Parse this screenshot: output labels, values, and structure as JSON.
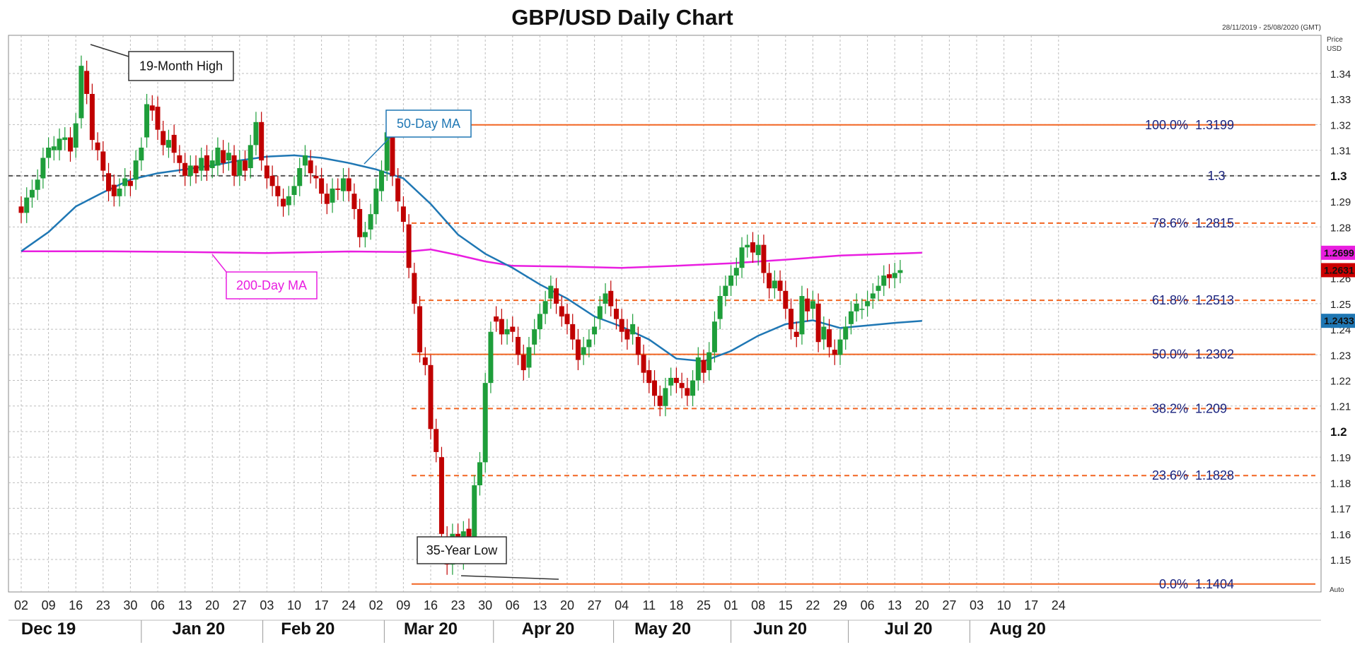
{
  "chart_data": {
    "type": "candlestick",
    "title": "GBP/USD Daily Chart",
    "date_range": "28/11/2019 - 25/08/2020 (GMT)",
    "price_label": "Price",
    "unit_label": "USD",
    "auto_label": "Auto",
    "ylim": [
      1.1375,
      1.3525
    ],
    "y_ticks": [
      {
        "v": 1.34,
        "label": "1.34"
      },
      {
        "v": 1.33,
        "label": "1.33"
      },
      {
        "v": 1.32,
        "label": "1.32"
      },
      {
        "v": 1.31,
        "label": "1.31"
      },
      {
        "v": 1.3,
        "label": "1.3",
        "major": true
      },
      {
        "v": 1.29,
        "label": "1.29"
      },
      {
        "v": 1.28,
        "label": "1.28"
      },
      {
        "v": 1.26,
        "label": "1.26"
      },
      {
        "v": 1.25,
        "label": "1.25"
      },
      {
        "v": 1.24,
        "label": "1.24"
      },
      {
        "v": 1.23,
        "label": "1.23"
      },
      {
        "v": 1.22,
        "label": "1.22"
      },
      {
        "v": 1.21,
        "label": "1.21"
      },
      {
        "v": 1.2,
        "label": "1.2",
        "major": true
      },
      {
        "v": 1.19,
        "label": "1.19"
      },
      {
        "v": 1.18,
        "label": "1.18"
      },
      {
        "v": 1.17,
        "label": "1.17"
      },
      {
        "v": 1.16,
        "label": "1.16"
      },
      {
        "v": 1.15,
        "label": "1.15"
      }
    ],
    "x_ticks": [
      "02",
      "09",
      "16",
      "23",
      "30",
      "06",
      "13",
      "20",
      "27",
      "03",
      "10",
      "17",
      "24",
      "02",
      "09",
      "16",
      "23",
      "30",
      "06",
      "13",
      "20",
      "27",
      "04",
      "11",
      "18",
      "25",
      "01",
      "08",
      "15",
      "22",
      "29",
      "06",
      "13",
      "20",
      "27",
      "03",
      "10",
      "17",
      "24"
    ],
    "months": [
      {
        "label": "Dec 19",
        "week": 1
      },
      {
        "label": "Jan 20",
        "week": 6.5
      },
      {
        "label": "Feb 20",
        "week": 10.5
      },
      {
        "label": "Mar 20",
        "week": 15
      },
      {
        "label": "Apr 20",
        "week": 19.3
      },
      {
        "label": "May 20",
        "week": 23.5
      },
      {
        "label": "Jun 20",
        "week": 27.8
      },
      {
        "label": "Jul 20",
        "week": 32.5
      },
      {
        "label": "Aug 20",
        "week": 36.5
      }
    ],
    "month_separators": [
      4.4,
      8.85,
      13.3,
      17.3,
      21.7,
      26,
      30.3,
      34.75
    ],
    "fibonacci": [
      {
        "pct": "100.0%",
        "level": "1.3199",
        "v": 1.3199,
        "style": "solid"
      },
      {
        "pct": "78.6%",
        "level": "1.2815",
        "v": 1.2815,
        "style": "dashed"
      },
      {
        "pct": "61.8%",
        "level": "1.2513",
        "v": 1.2513,
        "style": "dashed"
      },
      {
        "pct": "50.0%",
        "level": "1.2302",
        "v": 1.2302,
        "style": "solid"
      },
      {
        "pct": "38.2%",
        "level": "1.209",
        "v": 1.209,
        "style": "dashed"
      },
      {
        "pct": "23.6%",
        "level": "1.1828",
        "v": 1.1828,
        "style": "dashed"
      },
      {
        "pct": "0.0%",
        "level": "1.1404",
        "v": 1.1404,
        "style": "solid"
      }
    ],
    "reference_line": {
      "label": "1.3",
      "v": 1.3
    },
    "ma50": {
      "label": "50-Day MA",
      "color": "#1f77b4",
      "last": "1.2433",
      "points": [
        [
          0,
          1.2705
        ],
        [
          1,
          1.278
        ],
        [
          2,
          1.288
        ],
        [
          3,
          1.2935
        ],
        [
          4,
          1.2985
        ],
        [
          5,
          1.301
        ],
        [
          6,
          1.3025
        ],
        [
          7,
          1.304
        ],
        [
          8,
          1.306
        ],
        [
          9,
          1.3075
        ],
        [
          10,
          1.308
        ],
        [
          11,
          1.307
        ],
        [
          12,
          1.305
        ],
        [
          13,
          1.3025
        ],
        [
          14,
          1.299
        ],
        [
          15,
          1.289
        ],
        [
          16,
          1.277
        ],
        [
          17,
          1.2695
        ],
        [
          18,
          1.264
        ],
        [
          19,
          1.2575
        ],
        [
          20,
          1.252
        ],
        [
          21,
          1.245
        ],
        [
          22,
          1.241
        ],
        [
          23,
          1.236
        ],
        [
          24,
          1.2285
        ],
        [
          25,
          1.2275
        ],
        [
          26,
          1.2315
        ],
        [
          27,
          1.2375
        ],
        [
          28,
          1.242
        ],
        [
          29,
          1.2435
        ],
        [
          30,
          1.2405
        ],
        [
          31,
          1.2415
        ],
        [
          32,
          1.2425
        ],
        [
          33,
          1.2433
        ]
      ]
    },
    "ma200": {
      "label": "200-Day MA",
      "color": "#e91ee0",
      "last": "1.2699",
      "points": [
        [
          0,
          1.2705
        ],
        [
          3,
          1.2705
        ],
        [
          6,
          1.2702
        ],
        [
          9,
          1.2698
        ],
        [
          12,
          1.2704
        ],
        [
          14,
          1.2702
        ],
        [
          15,
          1.2712
        ],
        [
          16,
          1.269
        ],
        [
          17,
          1.2665
        ],
        [
          18,
          1.2648
        ],
        [
          20,
          1.2645
        ],
        [
          22,
          1.264
        ],
        [
          24,
          1.2648
        ],
        [
          26,
          1.2658
        ],
        [
          28,
          1.2672
        ],
        [
          30,
          1.2688
        ],
        [
          33,
          1.2699
        ]
      ]
    },
    "last_price": {
      "label": "1.2631",
      "color": "#cc0000"
    },
    "candles": [
      [
        0,
        1.288,
        1.2855,
        1.287
      ],
      [
        0.2,
        1.2855,
        1.2915,
        1.29
      ],
      [
        0.4,
        1.2915,
        1.2945,
        1.293
      ],
      [
        0.6,
        1.2945,
        1.2985,
        1.297
      ],
      [
        0.8,
        1.299,
        1.307,
        1.305
      ],
      [
        1.0,
        1.307,
        1.311,
        1.309
      ],
      [
        1.2,
        1.31,
        1.3115,
        1.3105
      ],
      [
        1.4,
        1.31,
        1.3145,
        1.313
      ],
      [
        1.6,
        1.314,
        1.315,
        1.3145
      ],
      [
        1.8,
        1.315,
        1.3095,
        1.311
      ],
      [
        2.0,
        1.311,
        1.3205,
        1.319
      ],
      [
        2.2,
        1.3225,
        1.343,
        1.34
      ],
      [
        2.4,
        1.341,
        1.332,
        1.334
      ],
      [
        2.6,
        1.332,
        1.314,
        1.313
      ],
      [
        2.8,
        1.313,
        1.31,
        1.312
      ],
      [
        3.0,
        1.3095,
        1.302,
        1.301
      ],
      [
        3.2,
        1.301,
        1.294,
        1.2945
      ],
      [
        3.4,
        1.2965,
        1.292,
        1.293
      ],
      [
        3.6,
        1.292,
        1.295,
        1.2945
      ],
      [
        3.8,
        1.296,
        1.299,
        1.2975
      ],
      [
        4.0,
        1.298,
        1.296,
        1.2975
      ],
      [
        4.2,
        1.2985,
        1.306,
        1.305
      ],
      [
        4.4,
        1.306,
        1.311,
        1.31
      ],
      [
        4.6,
        1.315,
        1.328,
        1.327
      ],
      [
        4.8,
        1.3275,
        1.3255,
        1.326
      ],
      [
        5.0,
        1.327,
        1.318,
        1.3175
      ],
      [
        5.2,
        1.3175,
        1.312,
        1.311
      ],
      [
        5.4,
        1.311,
        1.314,
        1.314
      ],
      [
        5.6,
        1.316,
        1.309,
        1.308
      ],
      [
        5.8,
        1.308,
        1.305,
        1.305
      ],
      [
        6.0,
        1.305,
        1.3,
        1.3
      ],
      [
        6.2,
        1.3,
        1.304,
        1.303
      ],
      [
        6.4,
        1.304,
        1.301,
        1.3005
      ],
      [
        6.6,
        1.302,
        1.307,
        1.306
      ],
      [
        6.8,
        1.308,
        1.302,
        1.302
      ],
      [
        7.0,
        1.303,
        1.306,
        1.305
      ],
      [
        7.2,
        1.304,
        1.311,
        1.31
      ],
      [
        7.4,
        1.31,
        1.305,
        1.305
      ],
      [
        7.6,
        1.306,
        1.309,
        1.308
      ],
      [
        7.8,
        1.308,
        1.3,
        1.2995
      ],
      [
        8.0,
        1.3,
        1.306,
        1.305
      ],
      [
        8.2,
        1.306,
        1.302,
        1.3
      ],
      [
        8.4,
        1.303,
        1.312,
        1.311
      ],
      [
        8.6,
        1.312,
        1.321,
        1.32
      ],
      [
        8.8,
        1.321,
        1.306,
        1.305
      ],
      [
        9.0,
        1.304,
        1.299,
        1.3
      ],
      [
        9.2,
        1.3,
        1.296,
        1.296
      ],
      [
        9.4,
        1.296,
        1.292,
        1.292
      ],
      [
        9.6,
        1.291,
        1.288,
        1.289
      ],
      [
        9.8,
        1.2885,
        1.292,
        1.2915
      ],
      [
        10.0,
        1.2925,
        1.296,
        1.295
      ],
      [
        10.2,
        1.296,
        1.303,
        1.304
      ],
      [
        10.4,
        1.304,
        1.308,
        1.306
      ],
      [
        10.6,
        1.306,
        1.301,
        1.3
      ],
      [
        10.8,
        1.3,
        1.299,
        1.298
      ],
      [
        11.0,
        1.299,
        1.293,
        1.294
      ],
      [
        11.2,
        1.293,
        1.289,
        1.289
      ],
      [
        11.4,
        1.2895,
        1.295,
        1.2945
      ],
      [
        11.6,
        1.295,
        1.2945,
        1.2935
      ],
      [
        11.8,
        1.294,
        1.299,
        1.298
      ],
      [
        12.0,
        1.299,
        1.294,
        1.293
      ],
      [
        12.2,
        1.293,
        1.287,
        1.287
      ],
      [
        12.4,
        1.287,
        1.276,
        1.276
      ],
      [
        12.6,
        1.276,
        1.278,
        1.279
      ],
      [
        12.8,
        1.279,
        1.285,
        1.284
      ],
      [
        13.0,
        1.285,
        1.295,
        1.294
      ],
      [
        13.2,
        1.294,
        1.302,
        1.3
      ],
      [
        13.4,
        1.302,
        1.317,
        1.316
      ],
      [
        13.6,
        1.316,
        1.3,
        1.299
      ],
      [
        13.8,
        1.299,
        1.29,
        1.289
      ],
      [
        14.0,
        1.288,
        1.282,
        1.281
      ],
      [
        14.2,
        1.281,
        1.264,
        1.262
      ],
      [
        14.4,
        1.262,
        1.25,
        1.25
      ],
      [
        14.6,
        1.249,
        1.231,
        1.23
      ],
      [
        14.8,
        1.229,
        1.226,
        1.226
      ],
      [
        15.0,
        1.226,
        1.201,
        1.2
      ],
      [
        15.2,
        1.201,
        1.192,
        1.192
      ],
      [
        15.4,
        1.19,
        1.16,
        1.16
      ],
      [
        15.6,
        1.159,
        1.148,
        1.147
      ],
      [
        15.8,
        1.148,
        1.16,
        1.159
      ],
      [
        16.0,
        1.16,
        1.159,
        1.15
      ],
      [
        16.2,
        1.15,
        1.161,
        1.162
      ],
      [
        16.4,
        1.162,
        1.156,
        1.155
      ],
      [
        16.6,
        1.158,
        1.179,
        1.178
      ],
      [
        16.8,
        1.179,
        1.188,
        1.187
      ],
      [
        17.0,
        1.188,
        1.219,
        1.218
      ],
      [
        17.2,
        1.219,
        1.239,
        1.238
      ],
      [
        17.4,
        1.245,
        1.243,
        1.243
      ],
      [
        17.6,
        1.244,
        1.238,
        1.239
      ],
      [
        17.8,
        1.238,
        1.24,
        1.24
      ],
      [
        18.0,
        1.241,
        1.239,
        1.237
      ],
      [
        18.2,
        1.237,
        1.23,
        1.229
      ],
      [
        18.4,
        1.23,
        1.224,
        1.224
      ],
      [
        18.6,
        1.225,
        1.233,
        1.233
      ],
      [
        18.8,
        1.234,
        1.24,
        1.24
      ],
      [
        19.0,
        1.24,
        1.246,
        1.246
      ],
      [
        19.2,
        1.246,
        1.251,
        1.251
      ],
      [
        19.4,
        1.252,
        1.257,
        1.256
      ],
      [
        19.6,
        1.256,
        1.25,
        1.25
      ],
      [
        19.8,
        1.249,
        1.245,
        1.246
      ],
      [
        20.0,
        1.246,
        1.242,
        1.242
      ],
      [
        20.2,
        1.242,
        1.236,
        1.236
      ],
      [
        20.4,
        1.236,
        1.228,
        1.229
      ],
      [
        20.6,
        1.23,
        1.233,
        1.232
      ],
      [
        20.8,
        1.233,
        1.236,
        1.237
      ],
      [
        21.0,
        1.238,
        1.241,
        1.241
      ],
      [
        21.2,
        1.244,
        1.249,
        1.249
      ],
      [
        21.4,
        1.25,
        1.254,
        1.255
      ],
      [
        21.6,
        1.255,
        1.249,
        1.249
      ],
      [
        21.8,
        1.248,
        1.244,
        1.244
      ],
      [
        22.0,
        1.244,
        1.239,
        1.24
      ],
      [
        22.2,
        1.24,
        1.236,
        1.237
      ],
      [
        22.4,
        1.238,
        1.242,
        1.241
      ],
      [
        22.6,
        1.237,
        1.23,
        1.23
      ],
      [
        22.8,
        1.23,
        1.223,
        1.223
      ],
      [
        23.0,
        1.224,
        1.219,
        1.22
      ],
      [
        23.2,
        1.22,
        1.214,
        1.214
      ],
      [
        23.4,
        1.214,
        1.21,
        1.21
      ],
      [
        23.6,
        1.21,
        1.217,
        1.217
      ],
      [
        23.8,
        1.218,
        1.221,
        1.221
      ],
      [
        24.0,
        1.221,
        1.219,
        1.219
      ],
      [
        24.2,
        1.219,
        1.217,
        1.217
      ],
      [
        24.4,
        1.217,
        1.214,
        1.214
      ],
      [
        24.6,
        1.214,
        1.22,
        1.22
      ],
      [
        24.8,
        1.22,
        1.229,
        1.228
      ],
      [
        25.0,
        1.228,
        1.223,
        1.223
      ],
      [
        25.2,
        1.224,
        1.231,
        1.23
      ],
      [
        25.4,
        1.231,
        1.243,
        1.243
      ],
      [
        25.6,
        1.244,
        1.253,
        1.253
      ],
      [
        25.8,
        1.253,
        1.257,
        1.257
      ],
      [
        26.0,
        1.257,
        1.261,
        1.261
      ],
      [
        26.2,
        1.261,
        1.264,
        1.265
      ],
      [
        26.4,
        1.264,
        1.272,
        1.272
      ],
      [
        26.6,
        1.272,
        1.273,
        1.274
      ],
      [
        26.8,
        1.274,
        1.27,
        1.268
      ],
      [
        27.0,
        1.269,
        1.273,
        1.273
      ],
      [
        27.2,
        1.273,
        1.262,
        1.262
      ],
      [
        27.4,
        1.262,
        1.256,
        1.256
      ],
      [
        27.6,
        1.256,
        1.259,
        1.259
      ],
      [
        27.8,
        1.259,
        1.255,
        1.255
      ],
      [
        28.0,
        1.255,
        1.248,
        1.248
      ],
      [
        28.2,
        1.248,
        1.24,
        1.24
      ],
      [
        28.4,
        1.239,
        1.237,
        1.237
      ],
      [
        28.6,
        1.238,
        1.253,
        1.252
      ],
      [
        28.8,
        1.252,
        1.247,
        1.247
      ],
      [
        29.0,
        1.248,
        1.251,
        1.251
      ],
      [
        29.2,
        1.25,
        1.235,
        1.235
      ],
      [
        29.4,
        1.236,
        1.241,
        1.24
      ],
      [
        29.6,
        1.24,
        1.233,
        1.233
      ],
      [
        29.8,
        1.232,
        1.23,
        1.23
      ],
      [
        30.0,
        1.23,
        1.236,
        1.235
      ],
      [
        30.2,
        1.236,
        1.241,
        1.241
      ],
      [
        30.4,
        1.242,
        1.247,
        1.247
      ],
      [
        30.6,
        1.247,
        1.25,
        1.249
      ],
      [
        30.8,
        1.248,
        1.248,
        1.249
      ],
      [
        31.0,
        1.249,
        1.251,
        1.251
      ],
      [
        31.2,
        1.252,
        1.254,
        1.254
      ],
      [
        31.4,
        1.255,
        1.257,
        1.256
      ],
      [
        31.6,
        1.257,
        1.261,
        1.261
      ],
      [
        31.8,
        1.2615,
        1.26,
        1.2605
      ],
      [
        32.0,
        1.26,
        1.262,
        1.262
      ],
      [
        32.2,
        1.262,
        1.2631,
        1.2631
      ]
    ]
  },
  "annotations": {
    "high": "19-Month High",
    "low": "35-Year Low",
    "ma50": "50-Day MA",
    "ma200": "200-Day MA"
  }
}
